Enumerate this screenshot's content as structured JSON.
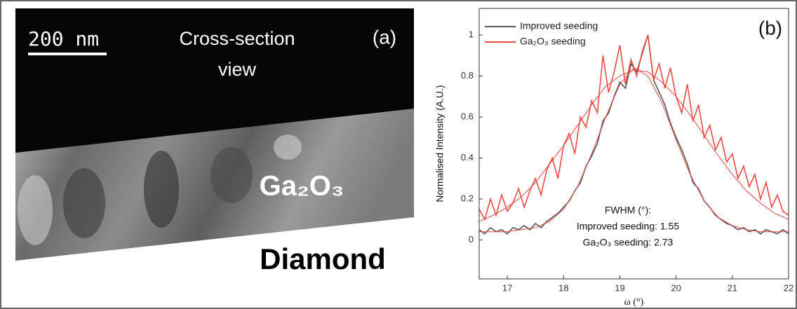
{
  "panel_a": {
    "label": "(a)",
    "scale_bar": "200 nm",
    "view_lines": [
      "Cross-section",
      "view"
    ],
    "layer_labels": [
      "Ga₂O₃",
      "Diamond"
    ]
  },
  "chart_data": {
    "type": "line",
    "panel_label": "(b)",
    "x_label": "ω (°)",
    "y_label": "Normalised Intensity (A.U.)",
    "x": [
      16.5,
      16.6,
      16.7,
      16.8,
      16.9,
      17.0,
      17.1,
      17.2,
      17.3,
      17.4,
      17.5,
      17.6,
      17.7,
      17.8,
      17.9,
      18.0,
      18.1,
      18.2,
      18.3,
      18.4,
      18.5,
      18.6,
      18.7,
      18.8,
      18.9,
      19.0,
      19.1,
      19.2,
      19.3,
      19.4,
      19.5,
      19.6,
      19.7,
      19.8,
      19.9,
      20.0,
      20.1,
      20.2,
      20.3,
      20.4,
      20.5,
      20.6,
      20.7,
      20.8,
      20.9,
      21.0,
      21.1,
      21.2,
      21.3,
      21.4,
      21.5,
      21.6,
      21.7,
      21.8,
      21.9,
      22.0
    ],
    "series": [
      {
        "name": "Improved seeding",
        "color": "#555555",
        "values": [
          0.05,
          0.03,
          0.06,
          0.04,
          0.05,
          0.03,
          0.06,
          0.05,
          0.07,
          0.05,
          0.08,
          0.06,
          0.09,
          0.11,
          0.13,
          0.16,
          0.19,
          0.24,
          0.28,
          0.36,
          0.41,
          0.47,
          0.58,
          0.62,
          0.7,
          0.77,
          0.74,
          0.86,
          0.82,
          0.91,
          1.0,
          0.78,
          0.72,
          0.66,
          0.57,
          0.5,
          0.44,
          0.37,
          0.28,
          0.25,
          0.19,
          0.16,
          0.12,
          0.1,
          0.08,
          0.07,
          0.05,
          0.06,
          0.04,
          0.05,
          0.03,
          0.05,
          0.04,
          0.03,
          0.05,
          0.03
        ]
      },
      {
        "name": "Ga₂O₃ seeding",
        "color": "#ee4a44",
        "values": [
          0.15,
          0.1,
          0.2,
          0.12,
          0.22,
          0.14,
          0.18,
          0.25,
          0.16,
          0.24,
          0.3,
          0.22,
          0.34,
          0.4,
          0.3,
          0.46,
          0.52,
          0.42,
          0.6,
          0.55,
          0.68,
          0.62,
          0.9,
          0.72,
          0.82,
          0.95,
          0.76,
          0.88,
          0.8,
          0.92,
          1.0,
          0.78,
          0.86,
          0.74,
          0.84,
          0.7,
          0.62,
          0.76,
          0.58,
          0.66,
          0.5,
          0.56,
          0.44,
          0.5,
          0.38,
          0.42,
          0.3,
          0.36,
          0.26,
          0.32,
          0.2,
          0.28,
          0.16,
          0.22,
          0.14,
          0.12
        ]
      }
    ],
    "fit_x": [
      16.5,
      16.75,
      17,
      17.25,
      17.5,
      17.75,
      18,
      18.25,
      18.5,
      18.75,
      19,
      19.25,
      19.5,
      19.75,
      20,
      20.25,
      20.5,
      20.75,
      21,
      21.25,
      21.5,
      21.75,
      22
    ],
    "fits": [
      {
        "color": "#e8473f",
        "values": [
          0.04,
          0.04,
          0.04,
          0.05,
          0.06,
          0.09,
          0.15,
          0.26,
          0.42,
          0.6,
          0.76,
          0.84,
          0.8,
          0.67,
          0.49,
          0.32,
          0.19,
          0.11,
          0.07,
          0.05,
          0.04,
          0.04,
          0.04
        ]
      },
      {
        "color": "#e8473f",
        "values": [
          0.09,
          0.12,
          0.16,
          0.21,
          0.28,
          0.37,
          0.46,
          0.56,
          0.66,
          0.75,
          0.8,
          0.83,
          0.82,
          0.77,
          0.7,
          0.61,
          0.51,
          0.41,
          0.32,
          0.24,
          0.18,
          0.13,
          0.1
        ]
      }
    ],
    "xlim": [
      16.5,
      22
    ],
    "xticks": [
      17,
      18,
      19,
      20,
      21,
      22
    ],
    "ylim": [
      -0.19,
      1.13
    ],
    "yticks": [
      0,
      0.2,
      0.4,
      0.6,
      0.8,
      1
    ],
    "legend": "upper left",
    "annotation": [
      "FWHM (°):",
      "Improved seeding: 1.55",
      "Ga₂O₃ seeding: 2.73"
    ]
  }
}
